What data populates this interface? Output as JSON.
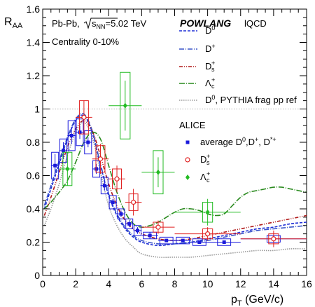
{
  "chart_data": {
    "type": "scatter",
    "xlabel": "p",
    "xlabel_sub": "T",
    "xlabel_unit": " (GeV/c)",
    "ylabel": "R",
    "ylabel_sub": "AA",
    "xlim": [
      0,
      16
    ],
    "ylim": [
      0,
      1.6
    ],
    "x_ticks": [
      "0",
      "2",
      "4",
      "6",
      "8",
      "10",
      "12",
      "14",
      "16"
    ],
    "y_ticks": [
      "0",
      "0.2",
      "0.4",
      "0.6",
      "0.8",
      "1",
      "1.2",
      "1.4",
      "1.6"
    ],
    "reference_line_y": 1,
    "annotations": {
      "system": "Pb-Pb,",
      "energy_prefix": "s",
      "energy_sub": "NN",
      "energy_value": "=5.02 TeV",
      "centrality": "Centrality 0-10%",
      "model_name": "POWLANG",
      "model_variant": "lQCD",
      "data_title": "ALICE"
    },
    "model_curves": [
      {
        "name": "D",
        "sup": "0",
        "sub": "",
        "suffix": "",
        "color": "#1f2fd6",
        "dash": "4,2",
        "x": [
          0.1,
          0.5,
          1,
          1.5,
          2,
          2.5,
          3,
          3.5,
          4,
          4.5,
          5,
          5.5,
          6,
          7,
          8,
          9,
          10,
          11,
          12,
          13,
          14,
          15,
          16
        ],
        "y": [
          0.4,
          0.52,
          0.67,
          0.82,
          0.93,
          0.96,
          0.86,
          0.66,
          0.48,
          0.36,
          0.28,
          0.23,
          0.2,
          0.18,
          0.19,
          0.2,
          0.22,
          0.24,
          0.26,
          0.28,
          0.29,
          0.31,
          0.32
        ]
      },
      {
        "name": "D",
        "sup": "+",
        "sub": "",
        "suffix": "",
        "color": "#3a55c8",
        "dash": "7,2,1,2",
        "x": [
          0.1,
          0.5,
          1,
          1.5,
          2,
          2.5,
          3,
          3.5,
          4,
          4.5,
          5,
          5.5,
          6,
          7,
          8,
          9,
          10,
          11,
          12,
          13,
          14,
          15,
          16
        ],
        "y": [
          0.42,
          0.54,
          0.69,
          0.83,
          0.94,
          0.97,
          0.87,
          0.67,
          0.49,
          0.37,
          0.29,
          0.24,
          0.21,
          0.19,
          0.19,
          0.2,
          0.21,
          0.23,
          0.25,
          0.27,
          0.28,
          0.29,
          0.3
        ]
      },
      {
        "name": "D",
        "sup": "+",
        "sub": "s",
        "suffix": "",
        "color": "#b01818",
        "dash": "5,2,1,2,1,2",
        "x": [
          0.1,
          0.5,
          1,
          1.5,
          2,
          2.5,
          3,
          3.5,
          4,
          4.5,
          5,
          5.5,
          6,
          7,
          8,
          9,
          10,
          11,
          12,
          13,
          14,
          15,
          16
        ],
        "y": [
          0.36,
          0.47,
          0.62,
          0.77,
          0.88,
          0.93,
          0.87,
          0.72,
          0.55,
          0.42,
          0.33,
          0.28,
          0.25,
          0.22,
          0.21,
          0.22,
          0.24,
          0.26,
          0.28,
          0.3,
          0.32,
          0.34,
          0.36
        ]
      },
      {
        "name": "Λ",
        "sup": "+",
        "sub": "c",
        "suffix": "",
        "color": "#2a8a1e",
        "dash": "8,2,1,2",
        "x": [
          0.1,
          0.5,
          1,
          1.5,
          2,
          2.5,
          3,
          3.5,
          4,
          4.5,
          5,
          5.5,
          6,
          6.5,
          7,
          7.5,
          8,
          8.5,
          9,
          9.5,
          10,
          10.5,
          11,
          11.5,
          12,
          12.5,
          13,
          13.5,
          14,
          14.5,
          15,
          15.5,
          16
        ],
        "y": [
          0.4,
          0.44,
          0.5,
          0.57,
          0.68,
          0.8,
          0.86,
          0.82,
          0.66,
          0.5,
          0.38,
          0.31,
          0.29,
          0.3,
          0.32,
          0.35,
          0.38,
          0.4,
          0.4,
          0.39,
          0.37,
          0.36,
          0.37,
          0.42,
          0.47,
          0.5,
          0.51,
          0.52,
          0.53,
          0.53,
          0.52,
          0.51,
          0.5
        ]
      },
      {
        "name": "D",
        "sup": "0",
        "sub": "",
        "suffix": ", PYTHIA frag pp ref",
        "color": "#9a9a9a",
        "dash": "1.5,1.5",
        "x": [
          0.1,
          0.5,
          1,
          1.5,
          2,
          2.5,
          3,
          3.5,
          4,
          4.5,
          5,
          5.5,
          6,
          7,
          8,
          9,
          10,
          11,
          12,
          13,
          14,
          15,
          16
        ],
        "y": [
          0.3,
          0.4,
          0.55,
          0.72,
          0.86,
          0.92,
          0.83,
          0.62,
          0.42,
          0.3,
          0.22,
          0.17,
          0.13,
          0.11,
          0.11,
          0.11,
          0.12,
          0.13,
          0.14,
          0.15,
          0.15,
          0.16,
          0.16
        ]
      }
    ],
    "data_series": [
      {
        "name": "average D",
        "sup": "0",
        "suffix": ",D",
        "sup2": "+",
        "suffix2": ", D",
        "sup3": "*+",
        "marker": "square",
        "color": "#1a1adb",
        "points": [
          {
            "x": 0.75,
            "y": 0.66,
            "xerr": 0.25,
            "yerr": 0.07,
            "sys": 0.08
          },
          {
            "x": 1.25,
            "y": 0.75,
            "xerr": 0.25,
            "yerr": 0.05,
            "sys": 0.07
          },
          {
            "x": 1.75,
            "y": 0.84,
            "xerr": 0.25,
            "yerr": 0.05,
            "sys": 0.09
          },
          {
            "x": 2.25,
            "y": 0.86,
            "xerr": 0.25,
            "yerr": 0.04,
            "sys": 0.08
          },
          {
            "x": 2.75,
            "y": 0.8,
            "xerr": 0.25,
            "yerr": 0.03,
            "sys": 0.07
          },
          {
            "x": 3.25,
            "y": 0.64,
            "xerr": 0.25,
            "yerr": 0.03,
            "sys": 0.05
          },
          {
            "x": 3.75,
            "y": 0.54,
            "xerr": 0.25,
            "yerr": 0.03,
            "sys": 0.05
          },
          {
            "x": 4.25,
            "y": 0.44,
            "xerr": 0.25,
            "yerr": 0.02,
            "sys": 0.04
          },
          {
            "x": 4.75,
            "y": 0.37,
            "xerr": 0.25,
            "yerr": 0.02,
            "sys": 0.03
          },
          {
            "x": 5.25,
            "y": 0.31,
            "xerr": 0.25,
            "yerr": 0.02,
            "sys": 0.03
          },
          {
            "x": 5.75,
            "y": 0.27,
            "xerr": 0.25,
            "yerr": 0.02,
            "sys": 0.03
          },
          {
            "x": 6.5,
            "y": 0.24,
            "xerr": 0.5,
            "yerr": 0.02,
            "sys": 0.02
          },
          {
            "x": 7.5,
            "y": 0.21,
            "xerr": 0.5,
            "yerr": 0.01,
            "sys": 0.02
          },
          {
            "x": 8.5,
            "y": 0.21,
            "xerr": 0.5,
            "yerr": 0.01,
            "sys": 0.02
          },
          {
            "x": 9.5,
            "y": 0.2,
            "xerr": 0.5,
            "yerr": 0.01,
            "sys": 0.02
          },
          {
            "x": 11,
            "y": 0.2,
            "xerr": 1,
            "yerr": 0.01,
            "sys": 0.02
          },
          {
            "x": 14,
            "y": 0.22,
            "xerr": 2,
            "yerr": 0.02,
            "sys": 0.02
          }
        ]
      },
      {
        "name": "D",
        "sup": "+",
        "sub": "s",
        "marker": "open-circle",
        "color": "#e02020",
        "points": [
          {
            "x": 2.5,
            "y": 0.95,
            "xerr": 0.5,
            "yerr": 0.1,
            "sys": 0.1
          },
          {
            "x": 3.5,
            "y": 0.7,
            "xerr": 0.5,
            "yerr": 0.09,
            "sys": 0.08
          },
          {
            "x": 4.5,
            "y": 0.58,
            "xerr": 0.5,
            "yerr": 0.08,
            "sys": 0.06
          },
          {
            "x": 5.5,
            "y": 0.44,
            "xerr": 0.5,
            "yerr": 0.08,
            "sys": 0.05
          },
          {
            "x": 7,
            "y": 0.29,
            "xerr": 1,
            "yerr": 0.04,
            "sys": 0.03
          },
          {
            "x": 10,
            "y": 0.25,
            "xerr": 2,
            "yerr": 0.04,
            "sys": 0.03
          },
          {
            "x": 14,
            "y": 0.22,
            "xerr": 2,
            "yerr": 0.05,
            "sys": 0.03
          }
        ]
      },
      {
        "name": "Λ",
        "sup": "+",
        "sub": "c",
        "marker": "diamond",
        "color": "#22bb22",
        "points": [
          {
            "x": 1.5,
            "y": 0.64,
            "xerr": 0.5,
            "yerr": 0.1,
            "sys": 0.1
          },
          {
            "x": 5,
            "y": 1.02,
            "xerr": 1,
            "yerr": 0.15,
            "sys": 0.2
          },
          {
            "x": 7,
            "y": 0.62,
            "xerr": 1,
            "yerr": 0.09,
            "sys": 0.13
          },
          {
            "x": 10,
            "y": 0.38,
            "xerr": 2,
            "yerr": 0.08,
            "sys": 0.06
          }
        ]
      }
    ]
  }
}
